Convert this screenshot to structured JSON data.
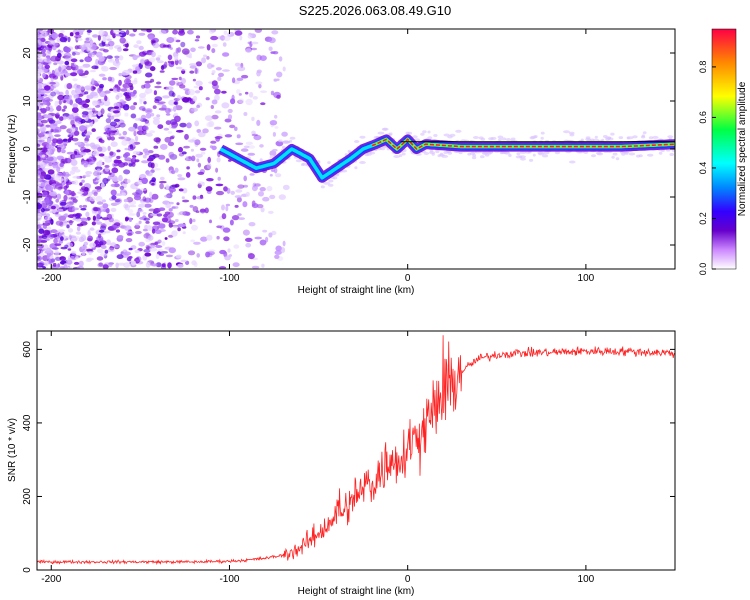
{
  "title": "S225.2026.063.08.49.G10",
  "chart_data": [
    {
      "type": "heatmap",
      "title": "S225.2026.063.08.49.G10",
      "xlabel": "Height of straight line (km)",
      "ylabel": "Frequency (Hz)",
      "xlim": [
        -208,
        150
      ],
      "ylim": [
        -25,
        25
      ],
      "xticks": [
        -200,
        -100,
        0,
        100
      ],
      "yticks": [
        -20,
        -10,
        0,
        10,
        20
      ],
      "colorbar": {
        "label": "Normalized spectral amplitude",
        "range": [
          0.0,
          0.95
        ],
        "ticks": [
          0.0,
          0.2,
          0.4,
          0.6,
          0.8
        ],
        "colors": [
          "#ffffff",
          "#cc88ff",
          "#6600cc",
          "#3300ff",
          "#0088ff",
          "#00ffff",
          "#00ff44",
          "#ffff00",
          "#ff8800",
          "#ff0044"
        ]
      },
      "ridge": {
        "x": [
          -105,
          -95,
          -85,
          -75,
          -65,
          -55,
          -48,
          -40,
          -32,
          -25,
          -18,
          -12,
          -6,
          0,
          5,
          10,
          30,
          60,
          90,
          120,
          150
        ],
        "freq": [
          0,
          -2,
          -4,
          -3,
          0,
          -2,
          -6,
          -4,
          -2,
          0,
          1,
          2,
          0,
          2,
          0,
          1,
          0.5,
          0.5,
          0.5,
          0.5,
          1
        ]
      },
      "reference_line_hz": 1.5
    },
    {
      "type": "line",
      "xlabel": "Height of straight line (km)",
      "ylabel": "SNR (10 * v/v)",
      "xlim": [
        -208,
        150
      ],
      "ylim": [
        0,
        650
      ],
      "xticks": [
        -200,
        -100,
        0,
        100
      ],
      "yticks": [
        0,
        200,
        400,
        600
      ],
      "series": [
        {
          "name": "SNR",
          "color": "#ff2222",
          "x": [
            -208,
            -180,
            -150,
            -120,
            -100,
            -90,
            -80,
            -70,
            -60,
            -50,
            -40,
            -30,
            -20,
            -10,
            0,
            10,
            20,
            30,
            40,
            50,
            60,
            80,
            100,
            120,
            150
          ],
          "y": [
            22,
            22,
            22,
            22,
            24,
            27,
            32,
            40,
            60,
            100,
            150,
            190,
            240,
            290,
            330,
            400,
            480,
            540,
            575,
            585,
            590,
            592,
            595,
            595,
            590
          ]
        }
      ]
    }
  ]
}
